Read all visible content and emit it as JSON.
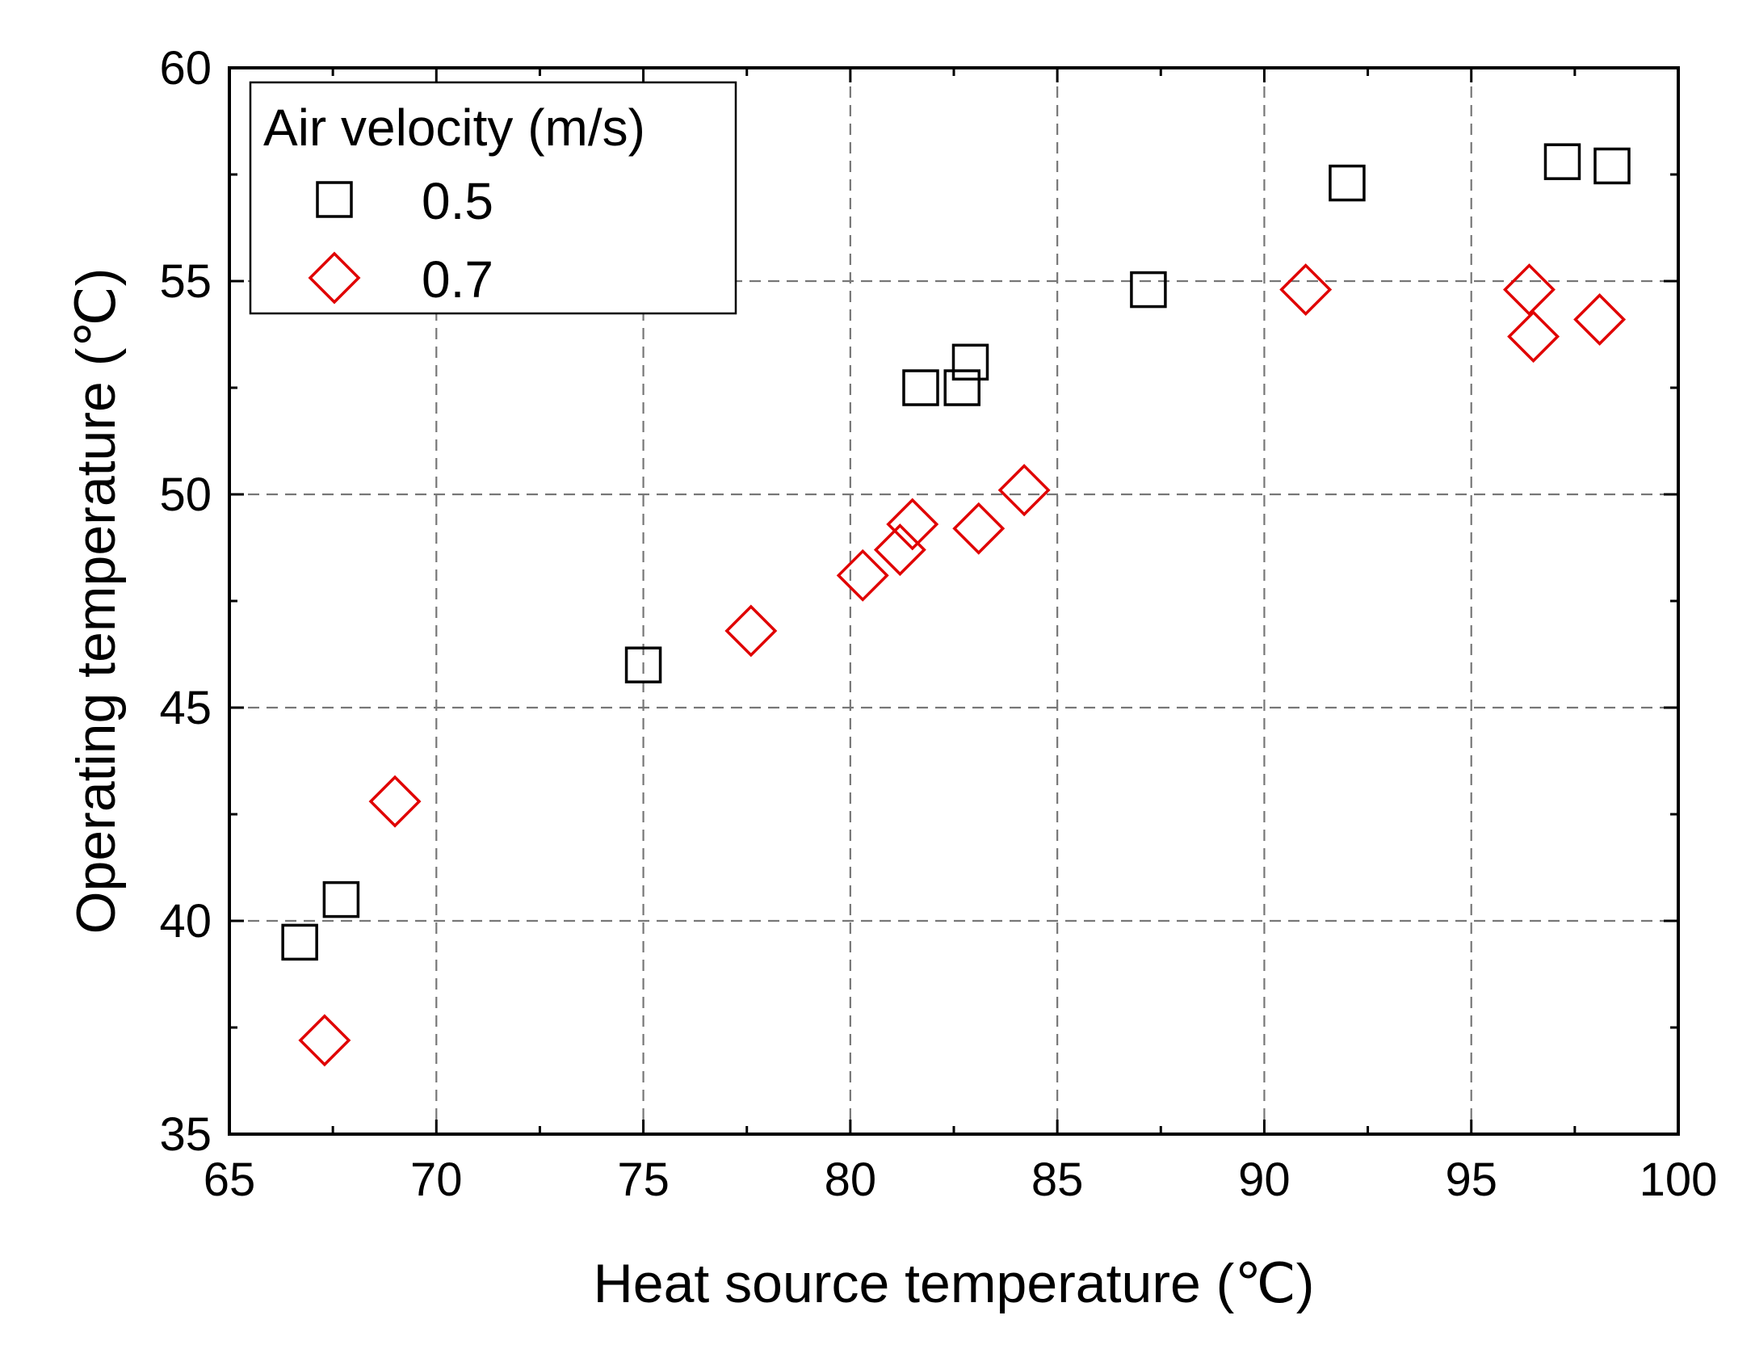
{
  "chart_data": {
    "type": "scatter",
    "title": "",
    "xlabel": "Heat source temperature (℃)",
    "ylabel": "Operating temperature (℃)",
    "xlim": [
      65,
      100
    ],
    "ylim": [
      35,
      60
    ],
    "xticks": [
      65,
      70,
      75,
      80,
      85,
      90,
      95,
      100
    ],
    "yticks": [
      35,
      40,
      45,
      50,
      55,
      60
    ],
    "grid": true,
    "legend": {
      "title": "Air velocity (m/s)",
      "position": "top-left"
    },
    "series": [
      {
        "name": "0.5",
        "marker": "square",
        "color": "#000000",
        "points": [
          [
            66.7,
            39.5
          ],
          [
            67.7,
            40.5
          ],
          [
            75.0,
            46.0
          ],
          [
            81.7,
            52.5
          ],
          [
            82.7,
            52.5
          ],
          [
            82.9,
            53.1
          ],
          [
            87.2,
            54.8
          ],
          [
            92.0,
            57.3
          ],
          [
            97.2,
            57.8
          ],
          [
            98.4,
            57.7
          ]
        ]
      },
      {
        "name": "0.7",
        "marker": "diamond",
        "color": "#e00000",
        "points": [
          [
            67.3,
            37.2
          ],
          [
            69.0,
            42.8
          ],
          [
            77.6,
            46.8
          ],
          [
            80.3,
            48.1
          ],
          [
            81.2,
            48.7
          ],
          [
            81.5,
            49.3
          ],
          [
            83.1,
            49.2
          ],
          [
            84.2,
            50.1
          ],
          [
            91.0,
            54.8
          ],
          [
            96.4,
            54.8
          ],
          [
            96.5,
            53.7
          ],
          [
            98.1,
            54.1
          ]
        ]
      }
    ]
  }
}
